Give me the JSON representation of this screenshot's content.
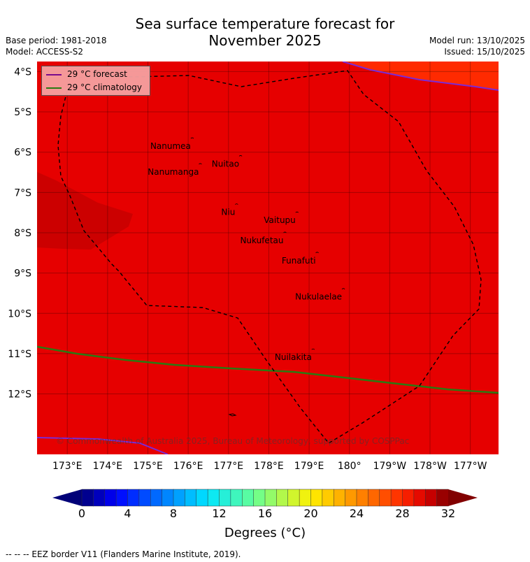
{
  "title_line1": "Sea surface temperature forecast for",
  "title_line2": "November 2025",
  "base_period": "Base period: 1981-2018",
  "model": "Model: ACCESS-S2",
  "model_run": "Model run: 13/10/2025",
  "issued": "Issued: 15/10/2025",
  "legend": {
    "forecast": "29 °C  forecast",
    "climatology": "29 °C  climatology",
    "forecast_color": "#7a0a8c",
    "climatology_color": "#2a7a12"
  },
  "map": {
    "lon_labels": [
      "173°E",
      "174°E",
      "175°E",
      "176°E",
      "177°E",
      "178°E",
      "179°E",
      "180°",
      "179°W",
      "178°W",
      "177°W"
    ],
    "lon_values": [
      173,
      174,
      175,
      176,
      177,
      178,
      179,
      180,
      181,
      182,
      183
    ],
    "lat_labels": [
      "4°S",
      "5°S",
      "6°S",
      "7°S",
      "8°S",
      "9°S",
      "10°S",
      "11°S",
      "12°S"
    ],
    "lat_values": [
      -4,
      -5,
      -6,
      -7,
      -8,
      -9,
      -10,
      -11,
      -12
    ],
    "lon_range": [
      172.25,
      183.7
    ],
    "lat_range": [
      -3.75,
      -13.5
    ],
    "sst_base_color": "#e60000",
    "islands": [
      {
        "name": "Nanumea",
        "lon": 176.1,
        "lat": -5.66
      },
      {
        "name": "Nuitao",
        "lon": 177.3,
        "lat": -6.1
      },
      {
        "name": "Nanumanga",
        "lon": 176.3,
        "lat": -6.3
      },
      {
        "name": "Niu",
        "lon": 177.2,
        "lat": -7.3
      },
      {
        "name": "Vaitupu",
        "lon": 178.7,
        "lat": -7.5
      },
      {
        "name": "Nukufetau",
        "lon": 178.4,
        "lat": -8.0
      },
      {
        "name": "Funafuti",
        "lon": 179.2,
        "lat": -8.5
      },
      {
        "name": "Nukulaelae",
        "lon": 179.85,
        "lat": -9.4
      },
      {
        "name": "Nuilakita",
        "lon": 179.1,
        "lat": -10.9
      }
    ],
    "copyright": "© Commonwealth of Australia 2025, Bureau of Meteorology, supported by COSPPac"
  },
  "colorbar": {
    "title": "Degrees (°C)",
    "min": 0,
    "max": 32,
    "step": 1,
    "tick_labels": [
      "0",
      "4",
      "8",
      "12",
      "16",
      "20",
      "24",
      "28",
      "32"
    ],
    "tick_values": [
      0,
      4,
      8,
      12,
      16,
      20,
      24,
      28,
      32
    ]
  },
  "footnote": "-- -- -- EEZ border V11 (Flanders Marine Institute, 2019)."
}
